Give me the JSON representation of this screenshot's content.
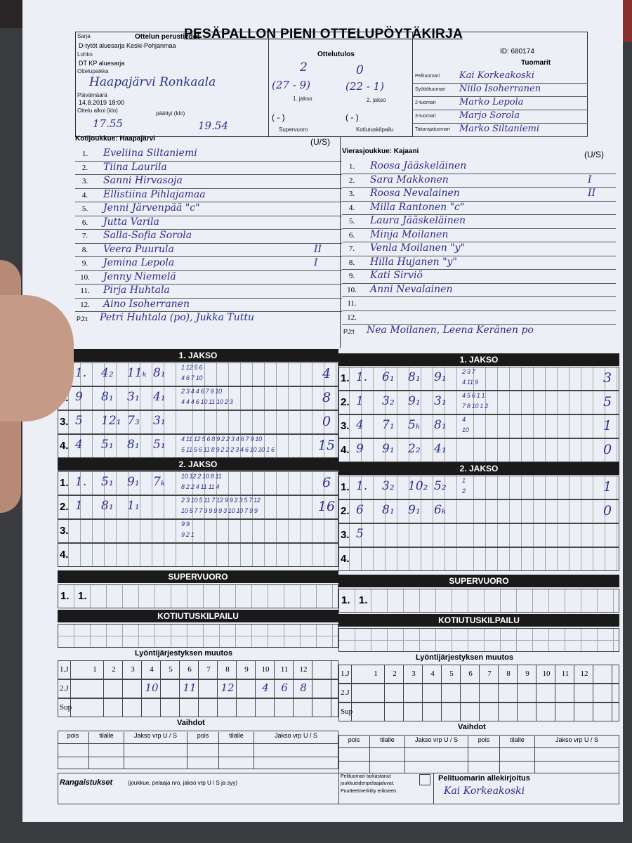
{
  "title": "PESÄPALLON PIENI OTTELUPÖYTÄKIRJA",
  "id_label": "ID: 680174",
  "basic": {
    "heading": "Ottelun perustiedot",
    "series_label": "Sarja",
    "series": "D-tytöt aluesarja Keski-Pohjanmaa",
    "group_label": "Lohko",
    "group": "DT KP aluesarja",
    "venue_label": "Ottelupaikka",
    "venue": "Haapajärvi Ronkaala",
    "date_label": "Päivämäärä",
    "date": "14.8.2019 18:00",
    "start_label": "Ottelu alkoi (klo)",
    "start": "17.55",
    "end_label": "päättyi (klo)",
    "end": "19.54"
  },
  "result": {
    "heading": "Ottelutulos",
    "home": "2",
    "away": "0",
    "p1": "(27 - 9)",
    "p1_label": "1. jakso",
    "p2": "(22 - 1)",
    "p2_label": "2. jakso",
    "super": "( - )",
    "super_label": "Supervuoro",
    "home_run": "( - )",
    "home_run_label": "Kotiutuskilpailu"
  },
  "referees": {
    "heading": "Tuomarit",
    "items": [
      {
        "role": "Pelituomari",
        "name": "Kai Korkeakoski"
      },
      {
        "role": "Syöttötuomari",
        "name": "Niilo Isoherranen"
      },
      {
        "role": "2-tuomari",
        "name": "Marko Lepola"
      },
      {
        "role": "3-tuomari",
        "name": "Marjo Sorola"
      },
      {
        "role": "Takarajatuomari",
        "name": "Marko Siltaniemi"
      }
    ]
  },
  "home": {
    "label": "Kotijoukkue: Haapajärvi",
    "us_label": "(U/S)",
    "players": [
      {
        "n": "1.",
        "name": "Eveliina Siltaniemi",
        "mark": ""
      },
      {
        "n": "2.",
        "name": "Tiina Laurila",
        "mark": ""
      },
      {
        "n": "3.",
        "name": "Sanni Hirvasoja",
        "mark": ""
      },
      {
        "n": "4.",
        "name": "Ellistiina Pihlajamaa",
        "mark": ""
      },
      {
        "n": "5.",
        "name": "Jenni Järvenpää \"c\"",
        "mark": ""
      },
      {
        "n": "6.",
        "name": "Jutta Varila",
        "mark": ""
      },
      {
        "n": "7.",
        "name": "Salla-Sofia Sorola",
        "mark": ""
      },
      {
        "n": "8.",
        "name": "Veera Puurula",
        "mark": "II"
      },
      {
        "n": "9.",
        "name": "Jemina Lepola",
        "mark": "I"
      },
      {
        "n": "10.",
        "name": "Jenny Niemelä",
        "mark": ""
      },
      {
        "n": "11.",
        "name": "Pirja Huhtala",
        "mark": ""
      },
      {
        "n": "12.",
        "name": "Aino Isoherranen",
        "mark": ""
      }
    ],
    "pj_label": "PJ:t",
    "pj": "Petri Huhtala (po), Jukka Tuttu"
  },
  "away": {
    "label": "Vierasjoukkue: Kajaani",
    "us_label": "(U/S)",
    "players": [
      {
        "n": "1.",
        "name": "Roosa Jääskeläinen",
        "mark": ""
      },
      {
        "n": "2.",
        "name": "Sara Makkonen",
        "mark": "I"
      },
      {
        "n": "3.",
        "name": "Roosa Nevalainen",
        "mark": "II"
      },
      {
        "n": "4.",
        "name": "Milla Rantonen \"c\"",
        "mark": ""
      },
      {
        "n": "5.",
        "name": "Laura Jääskeläinen",
        "mark": ""
      },
      {
        "n": "6.",
        "name": "Minja Moilanen",
        "mark": ""
      },
      {
        "n": "7.",
        "name": "Venla Moilanen \"y\"",
        "mark": ""
      },
      {
        "n": "8.",
        "name": "Hilla Hujanen \"y\"",
        "mark": ""
      },
      {
        "n": "9.",
        "name": "Kati Sirviö",
        "mark": ""
      },
      {
        "n": "10.",
        "name": "Anni Nevalainen",
        "mark": ""
      },
      {
        "n": "11.",
        "name": "",
        "mark": ""
      },
      {
        "n": "12.",
        "name": "",
        "mark": ""
      }
    ],
    "pj_label": "PJ:t",
    "pj": "Nea Moilanen, Leena Keränen po"
  },
  "periods": [
    {
      "label": "1. JAKSO",
      "home": [
        {
          "n": "1.",
          "marks": [
            "1.",
            "4₂",
            "11ₖ",
            "8₁"
          ],
          "top": "1 12 5 6",
          "bottom": "4 6 7 10",
          "total": "4"
        },
        {
          "n": "2.",
          "marks": [
            "9",
            "8₁",
            "3₁",
            "4₁"
          ],
          "top": "2 3 4 4 6 7 9 10",
          "bottom": "4 4 4 6 10 11 10 2 3",
          "total": "8"
        },
        {
          "n": "3.",
          "marks": [
            "5",
            "12₁",
            "7₃",
            "3₁"
          ],
          "top": "",
          "bottom": "",
          "total": "0"
        },
        {
          "n": "4.",
          "marks": [
            "4",
            "5₁",
            "8₁",
            "5₁"
          ],
          "top": "4 11 12 5 6 8 9 2 2 3 4 6 7 9 10",
          "bottom": "5 11 5 6 11 8 9 2 2 2 3 4 6 10 10 1 6",
          "total": "15"
        }
      ],
      "away": [
        {
          "n": "1.",
          "marks": [
            "1.",
            "6₁",
            "8₁",
            "9₁"
          ],
          "top": "2 3 7",
          "bottom": "4 11 9",
          "total": "3"
        },
        {
          "n": "2.",
          "marks": [
            "1",
            "3₂",
            "9₁",
            "3₁"
          ],
          "top": "4 5 6 1 1",
          "bottom": "7 8 10 1 2",
          "total": "5"
        },
        {
          "n": "3.",
          "marks": [
            "4",
            "7₁",
            "5ₖ",
            "8₁"
          ],
          "top": "4",
          "bottom": "10",
          "total": "1"
        },
        {
          "n": "4.",
          "marks": [
            "9",
            "9₁",
            "2₂",
            "4₁"
          ],
          "top": "",
          "bottom": "",
          "total": "0"
        }
      ]
    },
    {
      "label": "2. JAKSO",
      "home": [
        {
          "n": "1.",
          "marks": [
            "1.",
            "5₁",
            "9₁",
            "7ₖ"
          ],
          "top": "10 12 2 10 8 11",
          "bottom": "8 2 2 4 11 11 4",
          "total": "6"
        },
        {
          "n": "2.",
          "marks": [
            "1",
            "8₁",
            "1₁",
            ""
          ],
          "top": "2 3 10 5 11 7 12 9 9 2 3 5 7 12",
          "bottom": "10 5 7 7 9 9 9 9 3 10 10 7 9 9",
          "total": "16"
        },
        {
          "n": "3.",
          "marks": [
            "",
            "",
            "",
            ""
          ],
          "top": "9 9",
          "bottom": "9 2 1",
          "total": ""
        },
        {
          "n": "4.",
          "marks": [
            "",
            "",
            "",
            ""
          ],
          "top": "",
          "bottom": "",
          "total": ""
        }
      ],
      "away": [
        {
          "n": "1.",
          "marks": [
            "1.",
            "3₂",
            "10₂",
            "5₂"
          ],
          "top": "1",
          "bottom": "2",
          "total": "1"
        },
        {
          "n": "2.",
          "marks": [
            "6",
            "8₁",
            "9₁",
            "6ₖ"
          ],
          "top": "",
          "bottom": "",
          "total": "0"
        },
        {
          "n": "3.",
          "marks": [
            "5",
            "",
            "",
            ""
          ],
          "top": "",
          "bottom": "",
          "total": ""
        },
        {
          "n": "4.",
          "marks": [
            "",
            "",
            "",
            ""
          ],
          "top": "",
          "bottom": "",
          "total": ""
        }
      ]
    }
  ],
  "super": {
    "label": "SUPERVUORO",
    "row": "1.   1."
  },
  "home_run": {
    "label": "KOTIUTUSKILPAILU"
  },
  "order_change": {
    "label": "Lyöntijärjestyksen muutos",
    "cols": [
      "1",
      "2",
      "3",
      "4",
      "5",
      "6",
      "7",
      "8",
      "9",
      "10",
      "11",
      "12"
    ],
    "rows": [
      "1.J",
      "2.J",
      "Sup"
    ],
    "home_2j": [
      "",
      "",
      "",
      "10",
      "",
      "11",
      "",
      "12",
      "",
      "4",
      "6",
      "8"
    ]
  },
  "subs": {
    "label": "Vaihdot",
    "cols": [
      "pois",
      "tilalle",
      "Jakso vrp U / S",
      "pois",
      "tilalle",
      "Jakso vrp U / S"
    ]
  },
  "penalties": {
    "label": "Rangaistukset",
    "hint": "(joukkue, pelaaja nro, jakso vrp U / S ja syy)"
  },
  "check": {
    "text1": "Pelituomari tarkastanut",
    "text2": "joukkueidenpelaajaluvat.",
    "text3": "Puutteetmerkitty erikseen."
  },
  "signature": {
    "label": "Pelituomarin allekirjoitus",
    "value": "Kai Korkeakoski"
  }
}
